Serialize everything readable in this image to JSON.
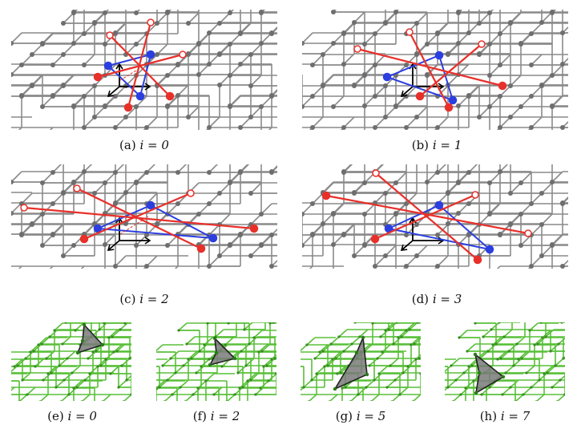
{
  "captions": [
    {
      "label": "(a)",
      "eq": "i = 0"
    },
    {
      "label": "(b)",
      "eq": "i = 1"
    },
    {
      "label": "(c)",
      "eq": "i = 2"
    },
    {
      "label": "(d)",
      "eq": "i = 3"
    },
    {
      "label": "(e)",
      "eq": "i = 0"
    },
    {
      "label": "(f)",
      "eq": "i = 2"
    },
    {
      "label": "(g)",
      "eq": "i = 5"
    },
    {
      "label": "(h)",
      "eq": "i = 7"
    }
  ],
  "colors": {
    "lattice": "#8a8a8a",
    "node": "#6e6e6e",
    "active": "#e8302a",
    "simplex": "#2b3fe0",
    "green": "#58c038",
    "fill": "#7a7a7a"
  }
}
